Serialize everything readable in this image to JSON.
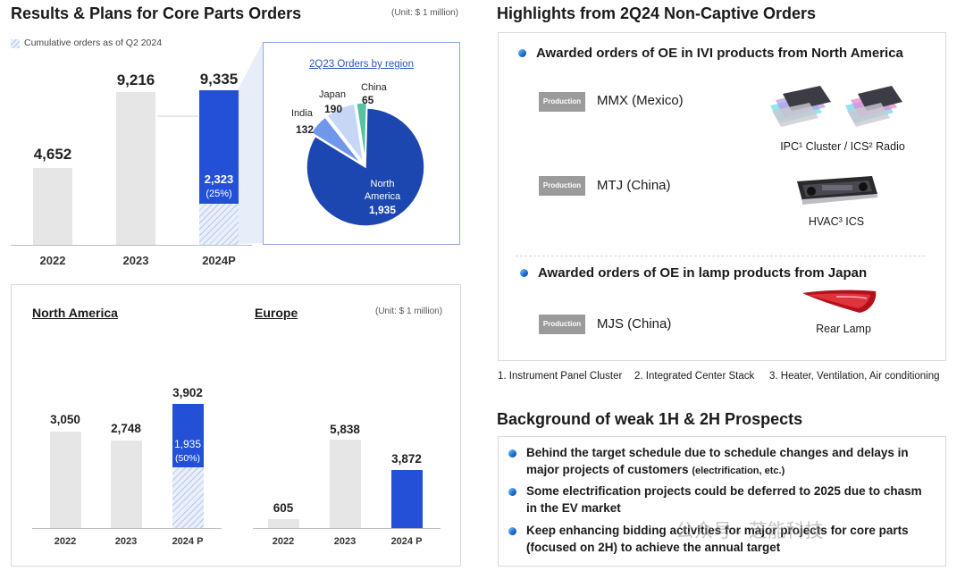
{
  "top_left": {
    "title": "Results & Plans for Core Parts Orders",
    "unit": "(Unit: $ 1 million)",
    "legend": "Cumulative orders as of Q2 2024",
    "chart_data": {
      "type": "bar",
      "title": "Results & Plans for Core Parts Orders",
      "categories": [
        "2022",
        "2023",
        "2024P"
      ],
      "value_labels": [
        "4,652",
        "9,216",
        "9,335"
      ],
      "values": [
        4652,
        9216,
        9335
      ],
      "cumulative_q2_2024": {
        "category": "2024P",
        "label": "2,323",
        "value": 2323,
        "share_label": "(25%)"
      }
    }
  },
  "pie": {
    "title": "2Q23 Orders by region",
    "chart_data": {
      "type": "pie",
      "title": "2Q23 Orders by region",
      "slices": [
        {
          "name": "North America",
          "name_lines": [
            "North",
            "America"
          ],
          "value": 1935,
          "label": "1,935",
          "color": "#1d47b0"
        },
        {
          "name": "India",
          "value": 132,
          "label": "132",
          "color": "#6f97ea"
        },
        {
          "name": "Japan",
          "value": 190,
          "label": "190",
          "color": "#c6d7f6"
        },
        {
          "name": "China",
          "value": 65,
          "label": "65",
          "color": "#56c4a0"
        }
      ]
    }
  },
  "bottom_left": {
    "na_title": "North America",
    "eu_title": "Europe",
    "unit": "(Unit: $ 1 million)",
    "chart_data": [
      {
        "type": "bar",
        "title": "North America",
        "categories": [
          "2022",
          "2023",
          "2024 P"
        ],
        "values": [
          3050,
          2748,
          3902
        ],
        "value_labels": [
          "3,050",
          "2,748",
          "3,902"
        ],
        "cumulative": {
          "category": "2024 P",
          "label": "1,935",
          "value": 1935,
          "share_label": "(50%)"
        }
      },
      {
        "type": "bar",
        "title": "Europe",
        "categories": [
          "2022",
          "2023",
          "2024 P"
        ],
        "values": [
          605,
          5838,
          3872
        ],
        "value_labels": [
          "605",
          "5,838",
          "3,872"
        ]
      }
    ]
  },
  "highlights": {
    "title": "Highlights from 2Q24 Non-Captive Orders",
    "section1": "Awarded orders of OE in IVI products from North America",
    "section2": "Awarded orders of OE in lamp products from Japan",
    "badge": "Production",
    "plants": [
      "MMX (Mexico)",
      "MTJ (China)",
      "MJS (China)"
    ],
    "captions": {
      "ipc": "IPC¹ Cluster / ICS² Radio",
      "hvac": "HVAC³ ICS",
      "lamp": "Rear Lamp"
    },
    "footnotes": [
      "1. Instrument Panel Cluster",
      "2. Integrated Center Stack",
      "3. Heater, Ventilation, Air conditioning"
    ]
  },
  "background": {
    "title": "Background of weak 1H & 2H Prospects",
    "items": [
      {
        "line1": "Behind the target schedule due to schedule changes and delays in",
        "line2": "major projects of customers",
        "note": "(electrification, etc.)"
      },
      {
        "line1": "Some electrification projects could be deferred to 2025 due to chasm",
        "line2": "in the EV market",
        "note": ""
      },
      {
        "line1": "Keep enhancing bidding activities for major projects for core parts",
        "line2": "(focused on 2H) to achieve the annual target",
        "note": ""
      }
    ]
  },
  "watermark": "公众号 · 芝能科技",
  "colors": {
    "accent": "#2350d6",
    "grey_bar": "#e6e6e6",
    "hatch": "#b7c8ec"
  }
}
